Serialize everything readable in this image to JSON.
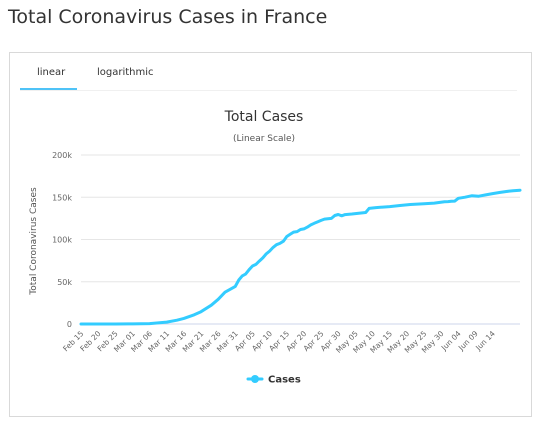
{
  "page": {
    "title": "Total Coronavirus Cases in France"
  },
  "tabs": [
    {
      "label": "linear",
      "active": true
    },
    {
      "label": "logarithmic",
      "active": false
    }
  ],
  "colors": {
    "series": "#33ccff",
    "tab_active": "#4fc3f7",
    "grid": "#e6e6e6"
  },
  "chart_data": {
    "type": "line",
    "title": "Total Cases",
    "subtitle": "(Linear Scale)",
    "ylabel": "Total Coronavirus Cases",
    "xlabel": "",
    "ylim": [
      0,
      200000
    ],
    "y_ticks": [
      0,
      50000,
      100000,
      150000,
      200000
    ],
    "y_tick_labels": [
      "0",
      "50k",
      "100k",
      "150k",
      "200k"
    ],
    "grid": true,
    "legend_position": "bottom-center",
    "x_tick_labels": [
      "Feb 15",
      "Feb 20",
      "Feb 25",
      "Mar 01",
      "Mar 06",
      "Mar 11",
      "Mar 16",
      "Mar 21",
      "Mar 26",
      "Mar 31",
      "Apr 05",
      "Apr 10",
      "Apr 15",
      "Apr 20",
      "Apr 25",
      "Apr 30",
      "May 05",
      "May 10",
      "May 15",
      "May 20",
      "May 25",
      "May 30",
      "Jun 04",
      "Jun 09",
      "Jun 14"
    ],
    "series": [
      {
        "name": "Cases",
        "points": [
          [
            "Feb 15",
            12
          ],
          [
            "Feb 20",
            12
          ],
          [
            "Feb 25",
            14
          ],
          [
            "Mar 01",
            130
          ],
          [
            "Mar 06",
            420
          ],
          [
            "Mar 11",
            2300
          ],
          [
            "Mar 14",
            4500
          ],
          [
            "Mar 16",
            6600
          ],
          [
            "Mar 19",
            10900
          ],
          [
            "Mar 21",
            14500
          ],
          [
            "Mar 24",
            22300
          ],
          [
            "Mar 26",
            29200
          ],
          [
            "Mar 28",
            37600
          ],
          [
            "Mar 31",
            44500
          ],
          [
            "Apr 01",
            52100
          ],
          [
            "Apr 02",
            56900
          ],
          [
            "Apr 03",
            59100
          ],
          [
            "Apr 04",
            64300
          ],
          [
            "Apr 05",
            68600
          ],
          [
            "Apr 06",
            70500
          ],
          [
            "Apr 07",
            74400
          ],
          [
            "Apr 08",
            78200
          ],
          [
            "Apr 09",
            83000
          ],
          [
            "Apr 10",
            86300
          ],
          [
            "Apr 11",
            90700
          ],
          [
            "Apr 12",
            93800
          ],
          [
            "Apr 13",
            95400
          ],
          [
            "Apr 14",
            98000
          ],
          [
            "Apr 15",
            103600
          ],
          [
            "Apr 16",
            106200
          ],
          [
            "Apr 17",
            108800
          ],
          [
            "Apr 18",
            109300
          ],
          [
            "Apr 19",
            111800
          ],
          [
            "Apr 20",
            112600
          ],
          [
            "Apr 21",
            114700
          ],
          [
            "Apr 22",
            117300
          ],
          [
            "Apr 23",
            119200
          ],
          [
            "Apr 24",
            120800
          ],
          [
            "Apr 25",
            122600
          ],
          [
            "Apr 26",
            124100
          ],
          [
            "Apr 27",
            124600
          ],
          [
            "Apr 28",
            125000
          ],
          [
            "Apr 29",
            128400
          ],
          [
            "Apr 30",
            129600
          ],
          [
            "May 01",
            128000
          ],
          [
            "May 02",
            129500
          ],
          [
            "May 04",
            130200
          ],
          [
            "May 06",
            131100
          ],
          [
            "May 08",
            132000
          ],
          [
            "May 09",
            136800
          ],
          [
            "May 11",
            137800
          ],
          [
            "May 13",
            138400
          ],
          [
            "May 15",
            138900
          ],
          [
            "May 18",
            140200
          ],
          [
            "May 21",
            141400
          ],
          [
            "May 25",
            142400
          ],
          [
            "May 28",
            143100
          ],
          [
            "May 31",
            144600
          ],
          [
            "Jun 01",
            144900
          ],
          [
            "Jun 02",
            145200
          ],
          [
            "Jun 03",
            145400
          ],
          [
            "Jun 04",
            148800
          ],
          [
            "Jun 06",
            150100
          ],
          [
            "Jun 08",
            151800
          ],
          [
            "Jun 10",
            151300
          ],
          [
            "Jun 12",
            152800
          ],
          [
            "Jun 14",
            154300
          ],
          [
            "Jun 16",
            155600
          ],
          [
            "Jun 18",
            156800
          ],
          [
            "Jun 20",
            157800
          ],
          [
            "Jun 22",
            158400
          ]
        ]
      }
    ]
  }
}
